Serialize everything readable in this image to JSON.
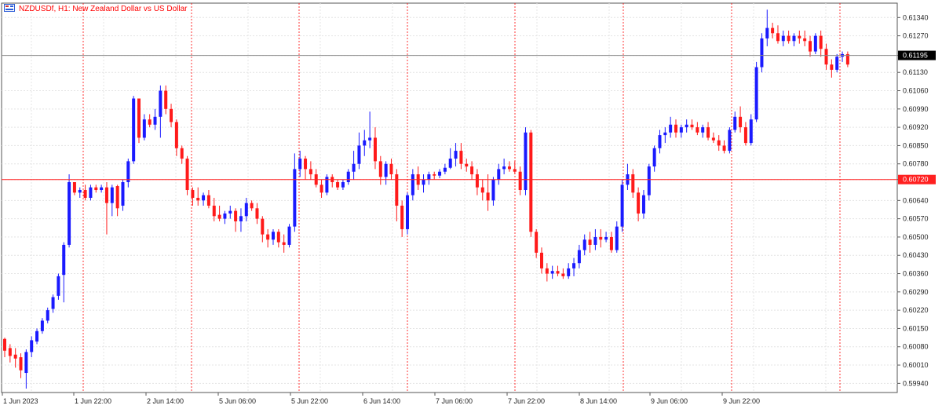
{
  "header": {
    "symbol": "NZDUSDf",
    "timeframe": "H1",
    "description": "New Zealand Dollar vs US Dollar",
    "title_text": "NZDUSDf, H1:  New Zealand Dollar vs US Dollar"
  },
  "colors": {
    "background": "#ffffff",
    "bull": "#1a1aff",
    "bear": "#ff1a1a",
    "grid": "#e4e4e4",
    "period_separator": "#ff0000",
    "axis": "#555555",
    "bid_line": "#8a8a8a",
    "hline": "#ff2020",
    "doji": "#3cd03c"
  },
  "price_axis": {
    "labels": [
      "0.61340",
      "0.61270",
      "0.61195",
      "0.61130",
      "0.61060",
      "0.60990",
      "0.60920",
      "0.60850",
      "0.60780",
      "0.60720",
      "0.60640",
      "0.60570",
      "0.60500",
      "0.60430",
      "0.60360",
      "0.60290",
      "0.60220",
      "0.60150",
      "0.60080",
      "0.60010",
      "0.59940"
    ],
    "current_bid": "0.61195",
    "hline_price": "0.60720"
  },
  "time_axis": {
    "labels": [
      "1 Jun 2023",
      "1 Jun 22:00",
      "2 Jun 14:00",
      "5 Jun 06:00",
      "5 Jun 22:00",
      "6 Jun 14:00",
      "7 Jun 06:00",
      "7 Jun 22:00",
      "8 Jun 14:00",
      "9 Jun 06:00",
      "9 Jun 22:00"
    ]
  },
  "chart_data": {
    "type": "candlestick",
    "symbol": "NZDUSDf",
    "timeframe": "H1",
    "ylim": [
      0.59905,
      0.61395
    ],
    "candles": [
      [
        0.6011,
        0.60115,
        0.6004,
        0.60065
      ],
      [
        0.60075,
        0.6009,
        0.6002,
        0.60045
      ],
      [
        0.6005,
        0.60075,
        0.6,
        0.60035
      ],
      [
        0.6004,
        0.60055,
        0.5996,
        0.5999
      ],
      [
        0.5998,
        0.6007,
        0.5992,
        0.6006
      ],
      [
        0.6006,
        0.6012,
        0.6004,
        0.60105
      ],
      [
        0.601,
        0.6015,
        0.6009,
        0.6014
      ],
      [
        0.6014,
        0.6019,
        0.6013,
        0.6018
      ],
      [
        0.6018,
        0.6023,
        0.6017,
        0.6022
      ],
      [
        0.60225,
        0.6028,
        0.6021,
        0.6027
      ],
      [
        0.60275,
        0.6036,
        0.6026,
        0.6035
      ],
      [
        0.60355,
        0.6048,
        0.6025,
        0.6047
      ],
      [
        0.6047,
        0.6074,
        0.6046,
        0.6071
      ],
      [
        0.6071,
        0.6071,
        0.6066,
        0.6067
      ],
      [
        0.6067,
        0.6069,
        0.6065,
        0.6068
      ],
      [
        0.6068,
        0.607,
        0.6064,
        0.6065
      ],
      [
        0.6065,
        0.607,
        0.6064,
        0.6069
      ],
      [
        0.6069,
        0.607,
        0.6067,
        0.6068
      ],
      [
        0.6068,
        0.607,
        0.6067,
        0.6069
      ],
      [
        0.6069,
        0.6071,
        0.6051,
        0.6063
      ],
      [
        0.6063,
        0.607,
        0.6058,
        0.6069
      ],
      [
        0.60695,
        0.607,
        0.6058,
        0.6061
      ],
      [
        0.6062,
        0.6072,
        0.606,
        0.6071
      ],
      [
        0.6071,
        0.608,
        0.6069,
        0.6079
      ],
      [
        0.6079,
        0.6104,
        0.6078,
        0.6103
      ],
      [
        0.6103,
        0.6103,
        0.6086,
        0.6088
      ],
      [
        0.6088,
        0.6097,
        0.6087,
        0.6095
      ],
      [
        0.6095,
        0.6097,
        0.6092,
        0.6093
      ],
      [
        0.6093,
        0.6099,
        0.6091,
        0.6096
      ],
      [
        0.6096,
        0.6108,
        0.6088,
        0.6106
      ],
      [
        0.6106,
        0.6108,
        0.6097,
        0.6099
      ],
      [
        0.6099,
        0.6101,
        0.6092,
        0.6094
      ],
      [
        0.6094,
        0.6095,
        0.6081,
        0.6084
      ],
      [
        0.6084,
        0.6085,
        0.6078,
        0.608
      ],
      [
        0.608,
        0.6081,
        0.6066,
        0.6068
      ],
      [
        0.6068,
        0.6069,
        0.6062,
        0.6065
      ],
      [
        0.6065,
        0.6069,
        0.6062,
        0.6064
      ],
      [
        0.6064,
        0.6067,
        0.6062,
        0.6066
      ],
      [
        0.6066,
        0.6068,
        0.6061,
        0.6062
      ],
      [
        0.6062,
        0.6065,
        0.6056,
        0.6058
      ],
      [
        0.60585,
        0.6062,
        0.6056,
        0.6057
      ],
      [
        0.6057,
        0.606,
        0.6055,
        0.6059
      ],
      [
        0.6059,
        0.6062,
        0.6057,
        0.606
      ],
      [
        0.606,
        0.6061,
        0.6052,
        0.6056
      ],
      [
        0.6056,
        0.6061,
        0.6052,
        0.6058
      ],
      [
        0.6058,
        0.6065,
        0.6056,
        0.6063
      ],
      [
        0.6063,
        0.6064,
        0.606,
        0.6061
      ],
      [
        0.6061,
        0.6063,
        0.6055,
        0.6057
      ],
      [
        0.6057,
        0.6058,
        0.6048,
        0.6051
      ],
      [
        0.6051,
        0.6053,
        0.6046,
        0.6049
      ],
      [
        0.6049,
        0.6053,
        0.6047,
        0.6052
      ],
      [
        0.6052,
        0.6053,
        0.6046,
        0.6048
      ],
      [
        0.6048,
        0.6051,
        0.6044,
        0.6047
      ],
      [
        0.6047,
        0.6055,
        0.6046,
        0.6054
      ],
      [
        0.6054,
        0.6082,
        0.6052,
        0.6076
      ],
      [
        0.6076,
        0.6083,
        0.6073,
        0.608
      ],
      [
        0.608,
        0.6081,
        0.6072,
        0.6076
      ],
      [
        0.6076,
        0.6079,
        0.6072,
        0.6074
      ],
      [
        0.6074,
        0.6076,
        0.6069,
        0.607
      ],
      [
        0.607,
        0.6072,
        0.6065,
        0.6067
      ],
      [
        0.6067,
        0.6074,
        0.6066,
        0.6073
      ],
      [
        0.6073,
        0.6074,
        0.6069,
        0.6071
      ],
      [
        0.6071,
        0.6072,
        0.6068,
        0.6069
      ],
      [
        0.6069,
        0.6072,
        0.6068,
        0.6071
      ],
      [
        0.6071,
        0.6076,
        0.607,
        0.6075
      ],
      [
        0.6075,
        0.6083,
        0.6072,
        0.6078
      ],
      [
        0.6078,
        0.609,
        0.6076,
        0.6085
      ],
      [
        0.6085,
        0.6091,
        0.6081,
        0.6087
      ],
      [
        0.6087,
        0.6098,
        0.6084,
        0.6088
      ],
      [
        0.6088,
        0.6092,
        0.6076,
        0.6079
      ],
      [
        0.6079,
        0.6081,
        0.607,
        0.6073
      ],
      [
        0.6073,
        0.6079,
        0.607,
        0.6078
      ],
      [
        0.6078,
        0.608,
        0.6072,
        0.6074
      ],
      [
        0.6074,
        0.6076,
        0.6056,
        0.6062
      ],
      [
        0.6062,
        0.6064,
        0.605,
        0.6053
      ],
      [
        0.6053,
        0.6067,
        0.6051,
        0.6066
      ],
      [
        0.6066,
        0.6076,
        0.6064,
        0.6074
      ],
      [
        0.6074,
        0.6077,
        0.6068,
        0.607
      ],
      [
        0.607,
        0.6074,
        0.6067,
        0.6072
      ],
      [
        0.6072,
        0.6075,
        0.607,
        0.6074
      ],
      [
        0.6074,
        0.6075,
        0.6072,
        0.60735
      ],
      [
        0.60735,
        0.6076,
        0.60725,
        0.6075
      ],
      [
        0.6075,
        0.6078,
        0.6074,
        0.60765
      ],
      [
        0.60765,
        0.6084,
        0.6076,
        0.608
      ],
      [
        0.608,
        0.6086,
        0.6077,
        0.6083
      ],
      [
        0.6083,
        0.6086,
        0.6076,
        0.6078
      ],
      [
        0.6078,
        0.608,
        0.6075,
        0.6077
      ],
      [
        0.6077,
        0.6079,
        0.6072,
        0.6074
      ],
      [
        0.6074,
        0.6076,
        0.6066,
        0.6069
      ],
      [
        0.6069,
        0.6072,
        0.6064,
        0.6067
      ],
      [
        0.6067,
        0.6074,
        0.606,
        0.6064
      ],
      [
        0.6064,
        0.6073,
        0.6062,
        0.6072
      ],
      [
        0.6072,
        0.6078,
        0.607,
        0.6076
      ],
      [
        0.6076,
        0.608,
        0.6074,
        0.6077
      ],
      [
        0.6077,
        0.6079,
        0.6075,
        0.6076
      ],
      [
        0.6076,
        0.6079,
        0.6074,
        0.6075
      ],
      [
        0.6075,
        0.6077,
        0.6066,
        0.6068
      ],
      [
        0.6068,
        0.6092,
        0.6066,
        0.609
      ],
      [
        0.609,
        0.6091,
        0.605,
        0.6052
      ],
      [
        0.6052,
        0.6053,
        0.6042,
        0.6044
      ],
      [
        0.6044,
        0.6046,
        0.6036,
        0.6038
      ],
      [
        0.6038,
        0.604,
        0.6033,
        0.6036
      ],
      [
        0.6036,
        0.6039,
        0.6034,
        0.6037
      ],
      [
        0.6037,
        0.6039,
        0.6035,
        0.6036
      ],
      [
        0.6036,
        0.6038,
        0.6034,
        0.6035
      ],
      [
        0.6035,
        0.604,
        0.6034,
        0.6038
      ],
      [
        0.6038,
        0.6042,
        0.6035,
        0.604
      ],
      [
        0.604,
        0.6047,
        0.6038,
        0.6045
      ],
      [
        0.6045,
        0.6051,
        0.6043,
        0.6049
      ],
      [
        0.6049,
        0.6052,
        0.6044,
        0.6047
      ],
      [
        0.6047,
        0.6053,
        0.6045,
        0.605
      ],
      [
        0.605,
        0.6053,
        0.6046,
        0.6049
      ],
      [
        0.6049,
        0.6052,
        0.6048,
        0.605
      ],
      [
        0.605,
        0.6052,
        0.6044,
        0.6045
      ],
      [
        0.6045,
        0.6056,
        0.6044,
        0.6054
      ],
      [
        0.6054,
        0.6072,
        0.6052,
        0.607
      ],
      [
        0.607,
        0.6078,
        0.6068,
        0.6074
      ],
      [
        0.6074,
        0.6076,
        0.6065,
        0.6067
      ],
      [
        0.6067,
        0.6069,
        0.6056,
        0.6059
      ],
      [
        0.6059,
        0.6068,
        0.6057,
        0.6066
      ],
      [
        0.6066,
        0.6078,
        0.6064,
        0.6077
      ],
      [
        0.6077,
        0.6085,
        0.6075,
        0.6084
      ],
      [
        0.6084,
        0.6091,
        0.6082,
        0.6089
      ],
      [
        0.6089,
        0.6092,
        0.6086,
        0.609
      ],
      [
        0.609,
        0.6096,
        0.6088,
        0.6093
      ],
      [
        0.6093,
        0.6095,
        0.6088,
        0.609
      ],
      [
        0.609,
        0.6093,
        0.6088,
        0.6092
      ],
      [
        0.6092,
        0.6095,
        0.609,
        0.6093
      ],
      [
        0.6093,
        0.6095,
        0.6091,
        0.6092
      ],
      [
        0.6092,
        0.6094,
        0.6089,
        0.609
      ],
      [
        0.609,
        0.6093,
        0.6088,
        0.6092
      ],
      [
        0.6092,
        0.6094,
        0.6087,
        0.6088
      ],
      [
        0.6088,
        0.609,
        0.6086,
        0.6087
      ],
      [
        0.6087,
        0.6089,
        0.6083,
        0.6085
      ],
      [
        0.6085,
        0.6087,
        0.6082,
        0.6083
      ],
      [
        0.6083,
        0.6092,
        0.6082,
        0.6091
      ],
      [
        0.6091,
        0.6098,
        0.609,
        0.6096
      ],
      [
        0.6096,
        0.61,
        0.609,
        0.6092
      ],
      [
        0.6092,
        0.6094,
        0.6085,
        0.6086
      ],
      [
        0.6086,
        0.6097,
        0.6085,
        0.6095
      ],
      [
        0.6095,
        0.6117,
        0.6094,
        0.6115
      ],
      [
        0.6115,
        0.6128,
        0.6113,
        0.6126
      ],
      [
        0.6126,
        0.6137,
        0.6123,
        0.613
      ],
      [
        0.613,
        0.6132,
        0.6126,
        0.6128
      ],
      [
        0.6128,
        0.6131,
        0.6124,
        0.6125
      ],
      [
        0.6125,
        0.6129,
        0.6123,
        0.6127
      ],
      [
        0.6127,
        0.6129,
        0.6124,
        0.6125
      ],
      [
        0.6125,
        0.6128,
        0.6123,
        0.6127
      ],
      [
        0.6127,
        0.6129,
        0.6124,
        0.6126
      ],
      [
        0.6126,
        0.6129,
        0.6123,
        0.6125
      ],
      [
        0.6125,
        0.6127,
        0.6119,
        0.6121
      ],
      [
        0.6121,
        0.6128,
        0.612,
        0.6127
      ],
      [
        0.6127,
        0.6129,
        0.6119,
        0.6122
      ],
      [
        0.6122,
        0.6124,
        0.6114,
        0.6116
      ],
      [
        0.6116,
        0.6118,
        0.6111,
        0.6114
      ],
      [
        0.6114,
        0.612,
        0.6113,
        0.6119
      ],
      [
        0.6119,
        0.6121,
        0.6117,
        0.612
      ],
      [
        0.612,
        0.6121,
        0.6115,
        0.6116
      ]
    ],
    "bid": 0.61195,
    "hline": 0.6072
  }
}
